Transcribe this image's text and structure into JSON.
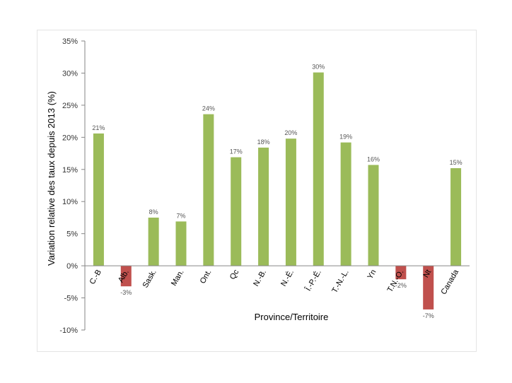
{
  "chart_data": {
    "type": "bar",
    "xlabel": "Province/Territoire",
    "ylabel": "Variation relative des taux depuis 2013 (%)",
    "ylim": [
      -10,
      35
    ],
    "ytick_step": 5,
    "ytick_labels": [
      "-10%",
      "-5%",
      "0%",
      "5%",
      "10%",
      "15%",
      "20%",
      "25%",
      "30%",
      "35%"
    ],
    "categories": [
      "C.-B",
      "Alb.",
      "Sask.",
      "Man.",
      "Ont.",
      "Qc",
      "N.-B.",
      "N.-É.",
      "Î.-P.-É.",
      "T.-N.-L.",
      "Yn",
      "T.N.-O.",
      "Nt",
      "Canada"
    ],
    "values": [
      20.6,
      -3.2,
      7.5,
      6.9,
      23.6,
      16.9,
      18.4,
      19.8,
      30.1,
      19.2,
      15.7,
      -2.1,
      -6.8,
      15.2
    ],
    "data_labels": [
      "21%",
      "-3%",
      "8%",
      "7%",
      "24%",
      "17%",
      "18%",
      "20%",
      "30%",
      "19%",
      "16%",
      "-2%",
      "-7%",
      "15%"
    ],
    "colors": {
      "positive": "#9BBB59",
      "negative": "#C0504D"
    },
    "grid": false,
    "legend": "none"
  }
}
